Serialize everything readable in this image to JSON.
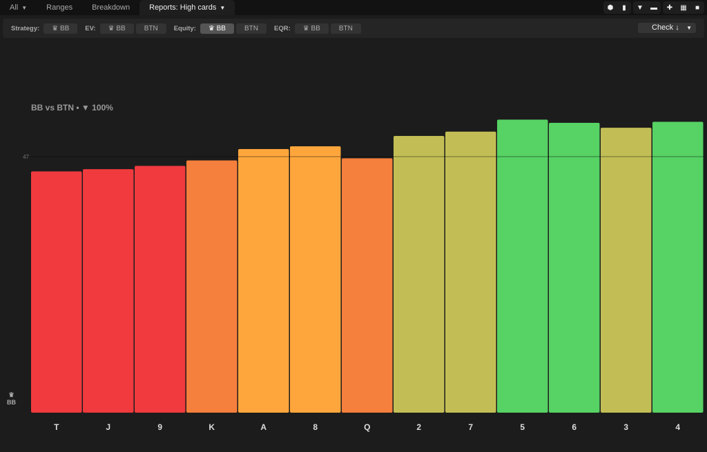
{
  "tabs": [
    {
      "label": "All"
    },
    {
      "label": "Ranges"
    },
    {
      "label": "Breakdown"
    },
    {
      "label": "Reports: High cards"
    }
  ],
  "toolbar_icons": [
    "cube-icon",
    "bar-chart-icon",
    "filter-icon",
    "folder-icon",
    "crosshair-icon",
    "grid-icon",
    "square-icon"
  ],
  "filters": {
    "strategy": "Strategy:",
    "ev": "EV:",
    "equity": "Equity:",
    "eqr": "EQR:",
    "bb": "BB",
    "btn": "BTN",
    "check": "Check ↓"
  },
  "chart_title": {
    "matchup": "BB vs BTN",
    "sep": "•",
    "filter": "100%"
  },
  "player_label": "BB",
  "chart_data": {
    "type": "bar",
    "categories": [
      "T",
      "J",
      "9",
      "K",
      "A",
      "8",
      "Q",
      "2",
      "7",
      "5",
      "6",
      "3",
      "4"
    ],
    "values": [
      44.3,
      44.7,
      45.3,
      46.3,
      48.4,
      48.9,
      46.7,
      50.8,
      51.6,
      53.8,
      53.2,
      52.3,
      53.4
    ],
    "colors": [
      "#f03a3e",
      "#f03a3e",
      "#f03a3e",
      "#f57f3c",
      "#fea63c",
      "#fea63c",
      "#f57f3c",
      "#c2be55",
      "#c2be55",
      "#57d264",
      "#57d264",
      "#c2be55",
      "#57d264"
    ],
    "reference_line": 47,
    "reference_label": "47",
    "ylim": [
      0,
      54
    ]
  }
}
